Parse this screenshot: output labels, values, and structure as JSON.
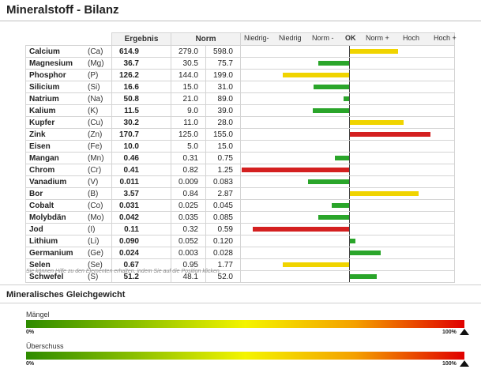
{
  "title": "Mineralstoff - Bilanz",
  "headers": {
    "result": "Ergebnis",
    "norm": "Norm",
    "scale": [
      "Niedrig-",
      "Niedrig",
      "Norm -",
      "OK",
      "Norm +",
      "Hoch",
      "Hoch +"
    ]
  },
  "colors": {
    "green": "#2aa52a",
    "yellow": "#f0d400",
    "red": "#d42020"
  },
  "minerals": [
    {
      "name": "Calcium",
      "sym": "(Ca)",
      "value": "614.9",
      "min": "279.0",
      "max": "598.0",
      "level": 0.45,
      "color": "yellow"
    },
    {
      "name": "Magnesium",
      "sym": "(Mg)",
      "value": "36.7",
      "min": "30.5",
      "max": "75.7",
      "level": -0.29,
      "color": "green"
    },
    {
      "name": "Phosphor",
      "sym": "(P)",
      "value": "126.2",
      "min": "144.0",
      "max": "199.0",
      "level": -0.62,
      "color": "yellow"
    },
    {
      "name": "Silicium",
      "sym": "(Si)",
      "value": "16.6",
      "min": "15.0",
      "max": "31.0",
      "level": -0.33,
      "color": "green"
    },
    {
      "name": "Natrium",
      "sym": "(Na)",
      "value": "50.8",
      "min": "21.0",
      "max": "89.0",
      "level": -0.05,
      "color": "green"
    },
    {
      "name": "Kalium",
      "sym": "(K)",
      "value": "11.5",
      "min": "9.0",
      "max": "39.0",
      "level": -0.34,
      "color": "green"
    },
    {
      "name": "Kupfer",
      "sym": "(Cu)",
      "value": "30.2",
      "min": "11.0",
      "max": "28.0",
      "level": 0.5,
      "color": "yellow"
    },
    {
      "name": "Zink",
      "sym": "(Zn)",
      "value": "170.7",
      "min": "125.0",
      "max": "155.0",
      "level": 0.75,
      "color": "red"
    },
    {
      "name": "Eisen",
      "sym": "(Fe)",
      "value": "10.0",
      "min": "5.0",
      "max": "15.0",
      "level": 0,
      "color": "green"
    },
    {
      "name": "Mangan",
      "sym": "(Mn)",
      "value": "0.46",
      "min": "0.31",
      "max": "0.75",
      "level": -0.13,
      "color": "green"
    },
    {
      "name": "Chrom",
      "sym": "(Cr)",
      "value": "0.41",
      "min": "0.82",
      "max": "1.25",
      "level": -1,
      "color": "red"
    },
    {
      "name": "Vanadium",
      "sym": "(V)",
      "value": "0.011",
      "min": "0.009",
      "max": "0.083",
      "level": -0.38,
      "color": "green"
    },
    {
      "name": "Bor",
      "sym": "(B)",
      "value": "3.57",
      "min": "0.84",
      "max": "2.87",
      "level": 0.64,
      "color": "yellow"
    },
    {
      "name": "Cobalt",
      "sym": "(Co)",
      "value": "0.031",
      "min": "0.025",
      "max": "0.045",
      "level": -0.16,
      "color": "green"
    },
    {
      "name": "Molybdän",
      "sym": "(Mo)",
      "value": "0.042",
      "min": "0.035",
      "max": "0.085",
      "level": -0.29,
      "color": "green"
    },
    {
      "name": "Jod",
      "sym": "(I)",
      "value": "0.11",
      "min": "0.32",
      "max": "0.59",
      "level": -0.9,
      "color": "red"
    },
    {
      "name": "Lithium",
      "sym": "(Li)",
      "value": "0.090",
      "min": "0.052",
      "max": "0.120",
      "level": 0.05,
      "color": "green"
    },
    {
      "name": "Germanium",
      "sym": "(Ge)",
      "value": "0.024",
      "min": "0.003",
      "max": "0.028",
      "level": 0.29,
      "color": "green"
    },
    {
      "name": "Selen",
      "sym": "(Se)",
      "value": "0.67",
      "min": "0.95",
      "max": "1.77",
      "level": -0.62,
      "color": "yellow"
    },
    {
      "name": "Schwefel",
      "sym": "(S)",
      "value": "51.2",
      "min": "48.1",
      "max": "52.0",
      "level": 0.25,
      "color": "green"
    }
  ],
  "hint": "Sie können Hilfe zu den Elementen erhalten, indem Sie auf die Position klicken.",
  "equilibrium": {
    "title": "Mineralisches Gleichgewicht",
    "gauges": [
      {
        "label": "Mängel",
        "min_label": "0%",
        "max_label": "100%",
        "level": 1.0
      },
      {
        "label": "Überschuss",
        "min_label": "0%",
        "max_label": "100%",
        "level": 1.0
      }
    ]
  }
}
